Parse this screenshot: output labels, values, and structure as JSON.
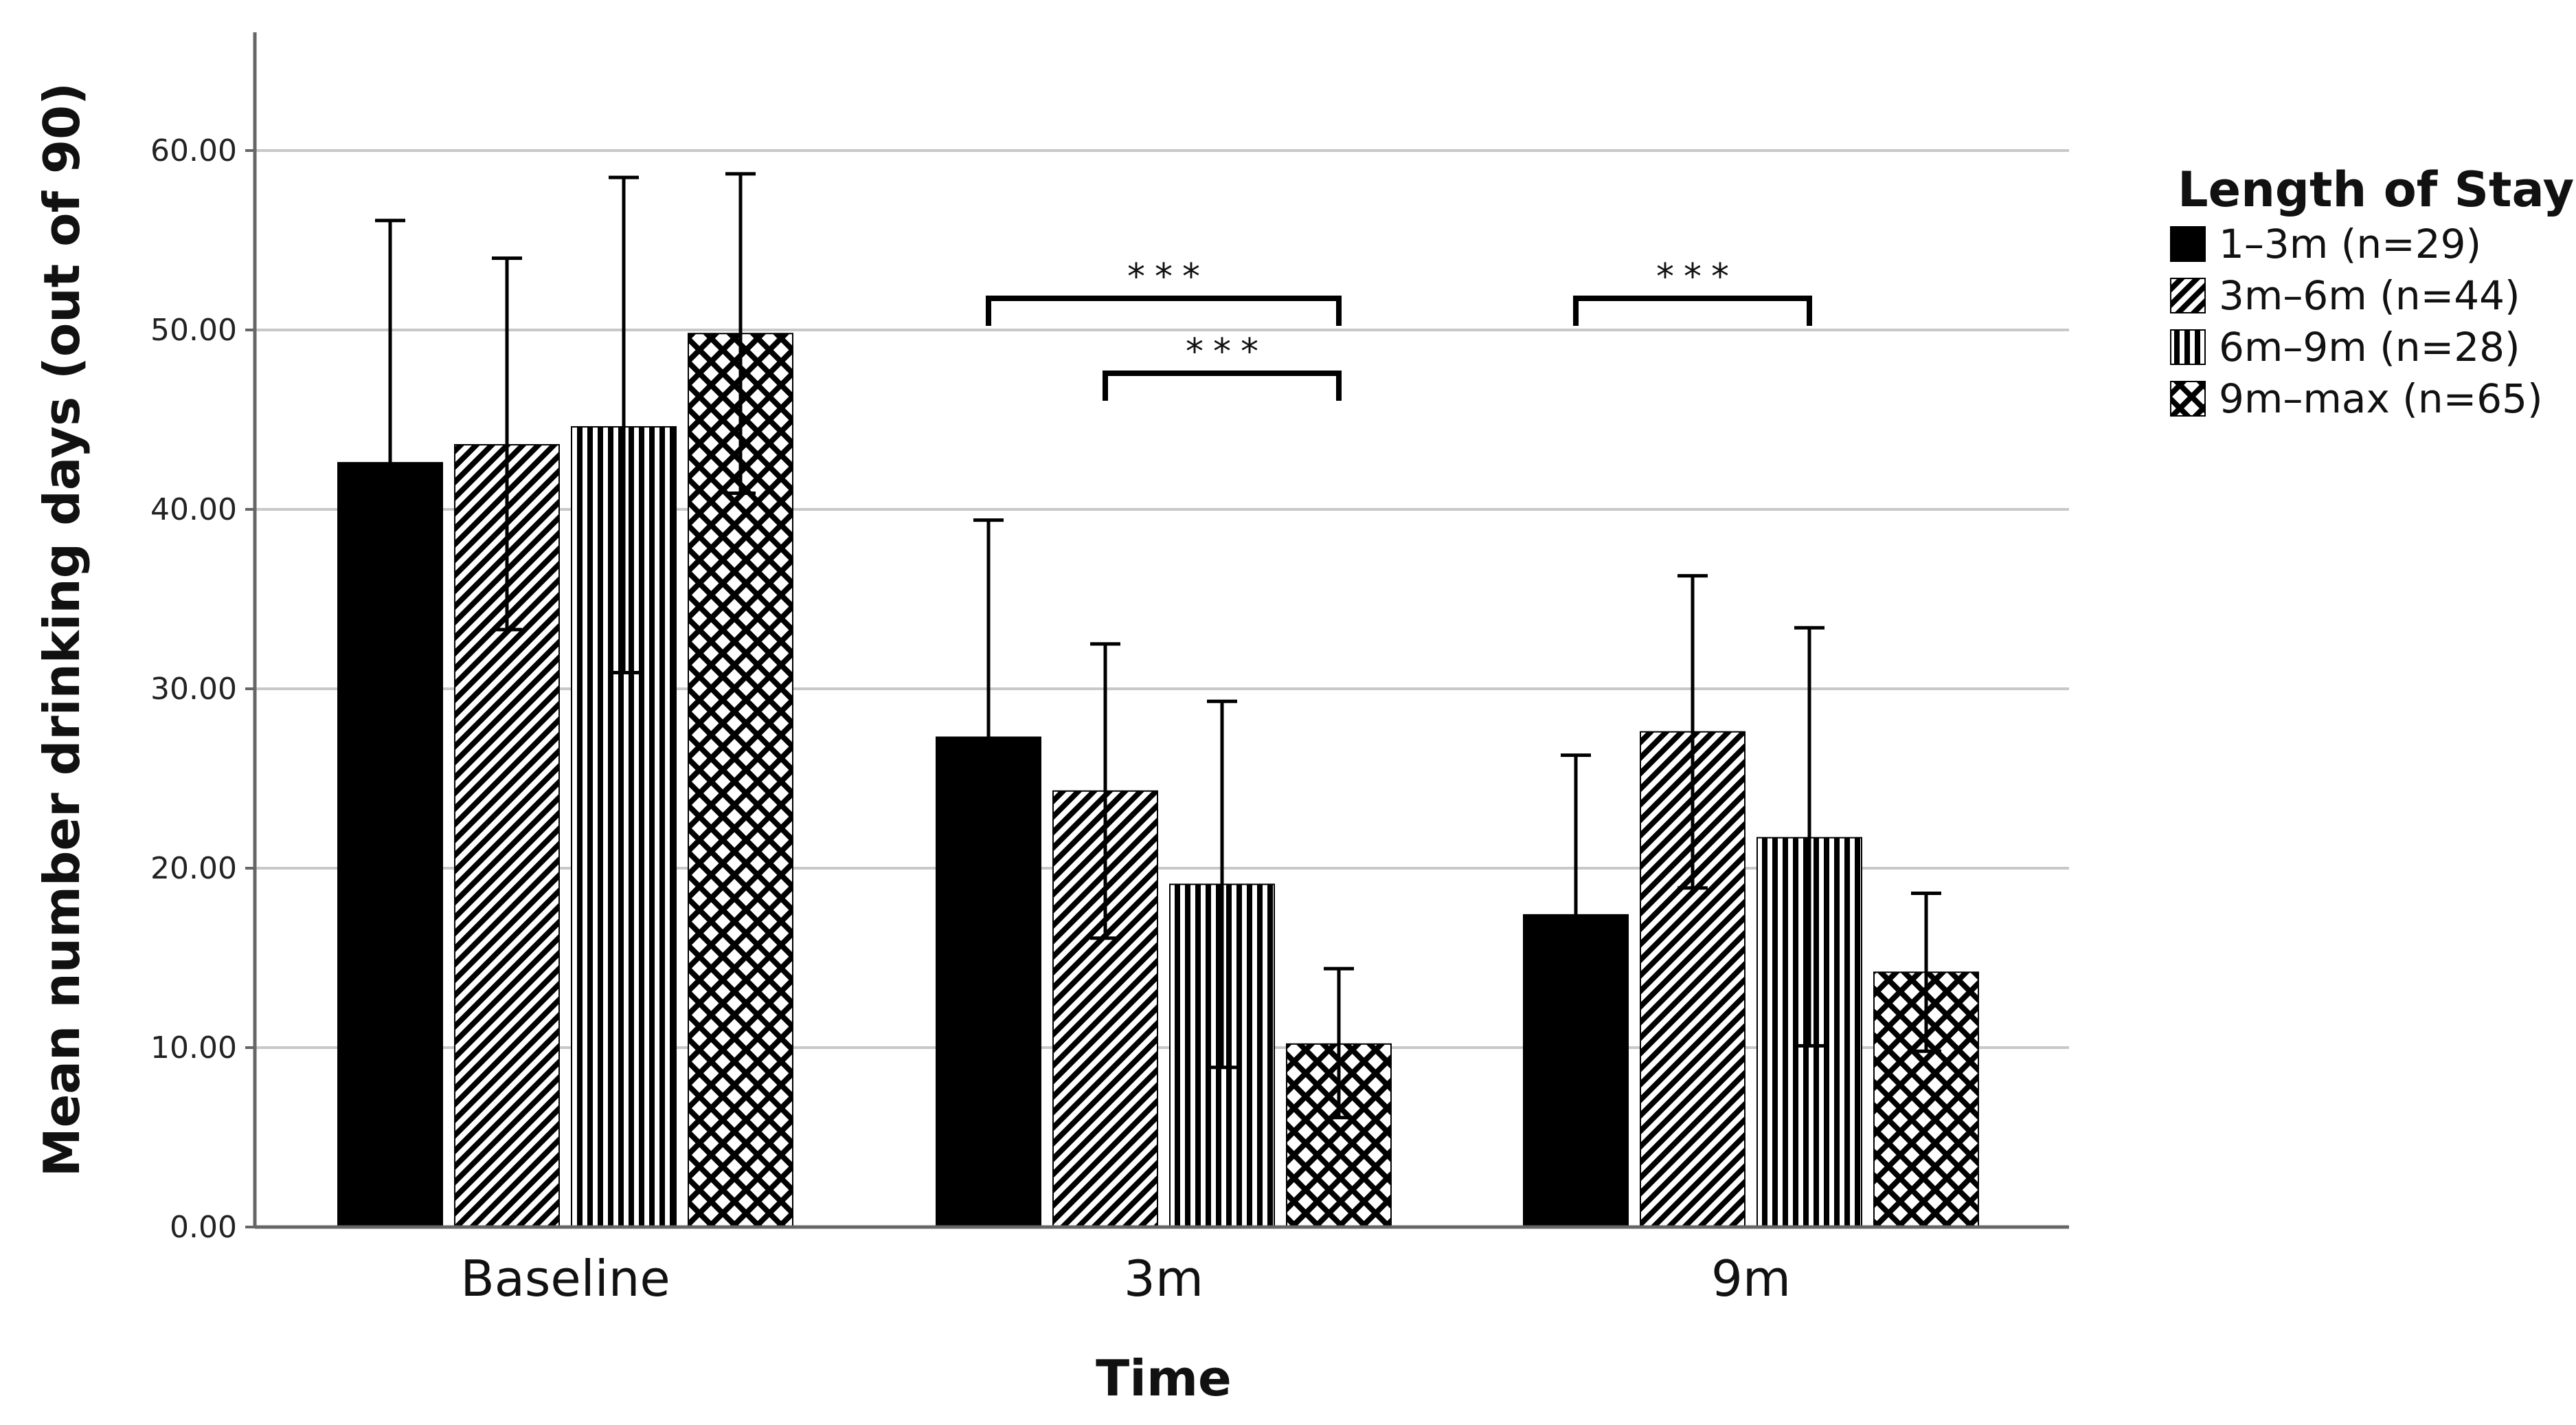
{
  "chart_data": {
    "type": "bar",
    "title": "",
    "xlabel": "Time",
    "ylabel": "Mean number drinking days (out of 90)",
    "ylim": [
      0,
      66
    ],
    "yticks": [
      "0.00",
      "10.00",
      "20.00",
      "30.00",
      "40.00",
      "50.00",
      "60.00"
    ],
    "categories": [
      "Baseline",
      "3m",
      "9m"
    ],
    "legend_title": "Length of Stay",
    "legend_position": "top-right",
    "grid": true,
    "series": [
      {
        "name": "1-3m (n=29)",
        "legend_label": "1–3m (n=29)",
        "pattern": "solid",
        "values": [
          42.6,
          27.3,
          17.4
        ],
        "error_upper": [
          56.1,
          39.4,
          26.3
        ],
        "error_lower": [
          null,
          null,
          null
        ]
      },
      {
        "name": "3m-6m (n=44)",
        "legend_label": "3m–6m (n=44)",
        "pattern": "diagonal",
        "values": [
          43.6,
          24.3,
          27.6
        ],
        "error_upper": [
          54.0,
          32.5,
          36.3
        ],
        "error_lower": [
          33.3,
          16.1,
          18.9
        ]
      },
      {
        "name": "6m-9m (n=28)",
        "legend_label": "6m–9m (n=28)",
        "pattern": "vertical",
        "values": [
          44.6,
          19.1,
          21.7
        ],
        "error_upper": [
          58.5,
          29.3,
          33.4
        ],
        "error_lower": [
          30.9,
          8.9,
          10.1
        ]
      },
      {
        "name": "9m-max (n=65)",
        "legend_label": "9m–max (n=65)",
        "pattern": "crosshatch",
        "values": [
          49.8,
          10.2,
          14.2
        ],
        "error_upper": [
          58.7,
          14.4,
          18.6
        ],
        "error_lower": [
          40.9,
          6.1,
          9.8
        ]
      }
    ],
    "annotations": [
      {
        "label": "***",
        "category": "3m",
        "from_series": 0,
        "to_series": 3,
        "level": 1
      },
      {
        "label": "***",
        "category": "3m",
        "from_series": 1,
        "to_series": 3,
        "level": 0
      },
      {
        "label": "***",
        "category": "9m",
        "from_series": 0,
        "to_series": 2,
        "level": 1
      }
    ]
  }
}
